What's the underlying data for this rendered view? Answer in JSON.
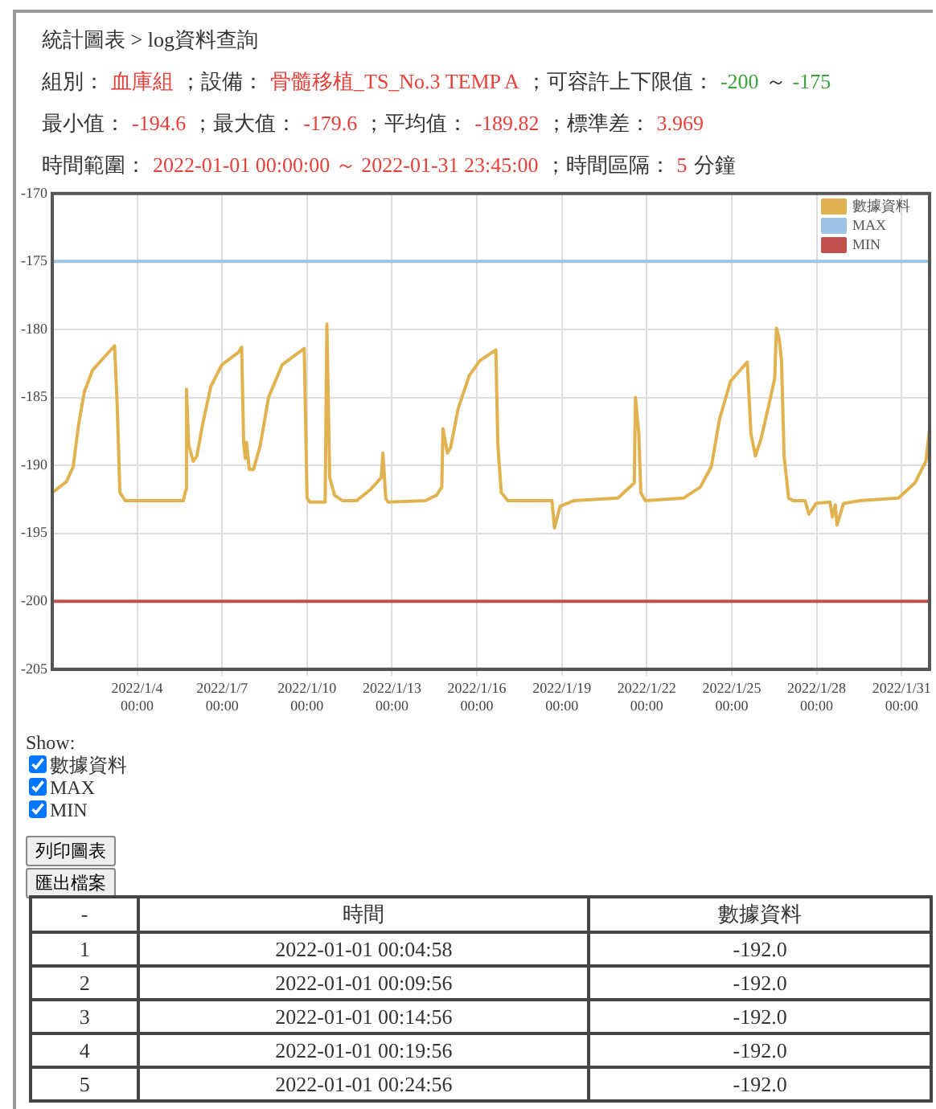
{
  "chart_data": {
    "type": "line",
    "title": "統計圖表 > log資料查詢",
    "annotations": [
      "組別：",
      "血庫組",
      "；設備：",
      "骨髓移植_TS_No.3 TEMP A",
      "；可容許上下限值：",
      "-200",
      "～",
      "-175",
      "最小值：",
      "-194.6",
      "；最大值：",
      "-179.6",
      "；平均值：",
      "-189.82",
      "；標準差：",
      "3.969",
      "時間範圍：",
      "2022-01-01 00:00:00 ～ 2022-01-31 23:45:00",
      "；時間區隔：",
      "5",
      "分鐘",
      "Show:",
      "列印圖表",
      "匯出檔案",
      "-",
      "時間",
      "1",
      "2022-01-01 00:04:58",
      "-192.0",
      "2",
      "2022-01-01 00:09:56",
      "-192.0",
      "3",
      "2022-01-01 00:14:56",
      "-192.0",
      "4",
      "2022-01-01 00:19:56",
      "-192.0",
      "5",
      "2022-01-01 00:24:56",
      "-192.0"
    ],
    "xlim": [
      "2022-01-01T00:00",
      "2022-01-31T23:45"
    ],
    "xticks": [
      {
        "value": "2022-01-04",
        "label": "2022/1/4 00:00"
      },
      {
        "value": "2022-01-07",
        "label": "2022/1/7 00:00"
      },
      {
        "value": "2022-01-10",
        "label": "2022/1/10 00:00"
      },
      {
        "value": "2022-01-13",
        "label": "2022/1/13 00:00"
      },
      {
        "value": "2022-01-16",
        "label": "2022/1/16 00:00"
      },
      {
        "value": "2022-01-19",
        "label": "2022/1/19 00:00"
      },
      {
        "value": "2022-01-22",
        "label": "2022/1/22 00:00"
      },
      {
        "value": "2022-01-25",
        "label": "2022/1/25 00:00"
      },
      {
        "value": "2022-01-28",
        "label": "2022/1/28 00:00"
      },
      {
        "value": "2022-01-31",
        "label": "2022/1/31 00:00"
      }
    ],
    "ylim": [
      -205,
      -170
    ],
    "yticks": [
      -205,
      -200,
      -195,
      -190,
      -185,
      -180,
      -175,
      -170
    ],
    "grid": true,
    "legend": "top right",
    "series": [
      {
        "name": "數據資料",
        "color": "#e0b350",
        "x": [
          "2022-01-01T00:04:58",
          "2022-01-01T00:09:56",
          "2022-01-01T00:14:56",
          "2022-01-01T00:19:56",
          "2022-01-01T00:24:56",
          "2022-01-01T12:00",
          "2022-01-01T17:45",
          "2022-01-01T22:20",
          "2022-01-02T03:10",
          "2022-01-02T10:05",
          "2022-01-02T19:25",
          "2022-01-03T04:50",
          "2022-01-03T06:58",
          "2022-01-03T09:22",
          "2022-01-03T13:55",
          "2022-01-04T20:24",
          "2022-01-05T15:07",
          "2022-01-05T17:17",
          "2022-01-05T17:46",
          "2022-01-05T19:41",
          "2022-01-05T23:31",
          "2022-01-06T02:38",
          "2022-01-06T07:26",
          "2022-01-06T14:24",
          "2022-01-06T23:46",
          "2022-01-07T13:41",
          "2022-01-07T16:34",
          "2022-01-07T18:14",
          "2022-01-07T19:41",
          "2022-01-07T20:38",
          "2022-01-07T23:02",
          "2022-01-08T02:38",
          "2022-01-08T08:24",
          "2022-01-08T15:22",
          "2022-01-09T02:53",
          "2022-01-09T21:36",
          "2022-01-10T00:00",
          "2022-01-10T02:24",
          "2022-01-10T15:22",
          "2022-01-10T16:48",
          "2022-01-10T19:12",
          "2022-01-10T23:17",
          "2022-01-11T06:14",
          "2022-01-11T18:00",
          "2022-01-12T05:31",
          "2022-01-12T14:53",
          "2022-01-12T16:19",
          "2022-01-12T18:43",
          "2022-01-12T20:38",
          "2022-01-14T04:19",
          "2022-01-14T13:41",
          "2022-01-14T18:14",
          "2022-01-14T19:12",
          "2022-01-14T23:02",
          "2022-01-15T01:41",
          "2022-01-15T08:10",
          "2022-01-15T17:31",
          "2022-01-16T02:24",
          "2022-01-16T16:05",
          "2022-01-16T17:46",
          "2022-01-16T20:38",
          "2022-01-17T02:10",
          "2022-01-18T15:36",
          "2022-01-18T17:46",
          "2022-01-18T22:34",
          "2022-01-19T10:05",
          "2022-01-20T23:31",
          "2022-01-21T13:26",
          "2022-01-21T14:24",
          "2022-01-21T17:17",
          "2022-01-21T18:58",
          "2022-01-21T22:48",
          "2022-01-23T07:26",
          "2022-01-23T21:22",
          "2022-01-24T06:43",
          "2022-01-24T13:41",
          "2022-01-24T23:02",
          "2022-01-25T13:12",
          "2022-01-25T16:19",
          "2022-01-25T20:10",
          "2022-01-26T00:43",
          "2022-01-26T07:55",
          "2022-01-26T12:29",
          "2022-01-26T13:55",
          "2022-01-26T16:19",
          "2022-01-26T18:14",
          "2022-01-26T20:24",
          "2022-01-27T00:14",
          "2022-01-27T04:05",
          "2022-01-27T14:10",
          "2022-01-27T17:31",
          "2022-01-27T23:31",
          "2022-01-28T11:17",
          "2022-01-28T13:26",
          "2022-01-28T15:50",
          "2022-01-28T17:17",
          "2022-01-28T22:48",
          "2022-01-29T12:43",
          "2022-01-30T21:22",
          "2022-01-31T11:17",
          "2022-01-31T20:38",
          "2022-01-31T23:45"
        ],
        "values": [
          -192.0,
          -192.0,
          -192.0,
          -192.0,
          -192.0,
          -191.2,
          -190.1,
          -187.0,
          -184.6,
          -183.0,
          -182.1,
          -181.2,
          -185.4,
          -192.0,
          -192.6,
          -192.6,
          -192.6,
          -191.8,
          -184.4,
          -188.5,
          -189.7,
          -189.3,
          -187.0,
          -184.2,
          -182.6,
          -181.7,
          -181.3,
          -188.3,
          -189.5,
          -188.3,
          -190.3,
          -190.3,
          -188.5,
          -185.0,
          -182.6,
          -181.4,
          -192.4,
          -192.7,
          -192.7,
          -179.6,
          -190.9,
          -192.2,
          -192.6,
          -192.6,
          -191.8,
          -190.9,
          -189.1,
          -192.4,
          -192.7,
          -192.6,
          -192.2,
          -191.6,
          -187.3,
          -189.1,
          -188.7,
          -185.8,
          -183.4,
          -182.3,
          -181.5,
          -188.5,
          -192.0,
          -192.6,
          -192.6,
          -194.6,
          -193.0,
          -192.6,
          -192.4,
          -191.3,
          -185.0,
          -187.7,
          -192.0,
          -192.6,
          -192.4,
          -191.6,
          -190.1,
          -186.6,
          -183.8,
          -182.4,
          -187.7,
          -189.3,
          -188.1,
          -185.4,
          -183.6,
          -179.9,
          -180.7,
          -182.3,
          -189.3,
          -192.4,
          -192.6,
          -192.6,
          -193.6,
          -192.8,
          -192.7,
          -193.8,
          -192.9,
          -194.4,
          -192.8,
          -192.6,
          -192.4,
          -191.3,
          -189.7,
          -187.3
        ],
        "line_style": "solid"
      },
      {
        "name": "MAX",
        "color": "#9dc3e6",
        "x": [
          "2022-01-01T00:00",
          "2022-01-31T23:45"
        ],
        "values": [
          -175,
          -175
        ]
      },
      {
        "name": "MIN",
        "color": "#c0504d",
        "x": [
          "2022-01-01T00:00",
          "2022-01-31T23:45"
        ],
        "values": [
          -200,
          -200
        ]
      }
    ]
  }
}
